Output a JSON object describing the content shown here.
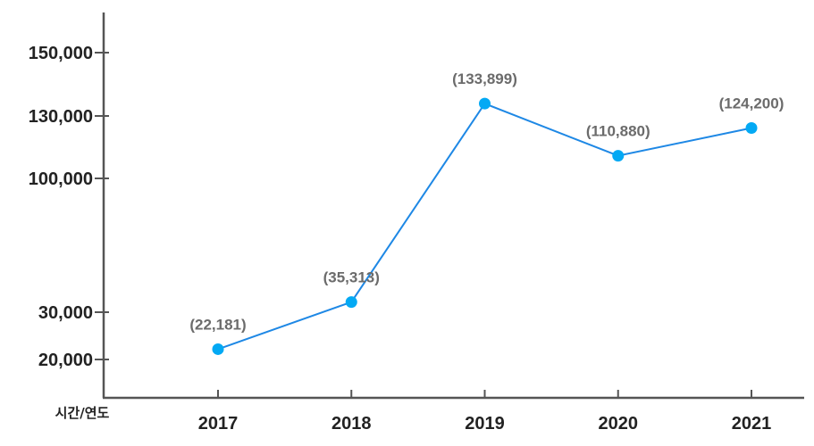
{
  "chart_data": {
    "type": "line",
    "x_axis_label": "시간/연도",
    "categories": [
      "2017",
      "2018",
      "2019",
      "2020",
      "2021"
    ],
    "series": [
      {
        "values": [
          22181,
          35313,
          133899,
          110880,
          124200
        ],
        "data_labels": [
          "(22,181)",
          "(35,313)",
          "(133,899)",
          "(110,880)",
          "(124,200)"
        ]
      }
    ],
    "y_ticks": [
      {
        "value": 20000,
        "label": "20,000"
      },
      {
        "value": 30000,
        "label": "30,000"
      },
      {
        "value": 100000,
        "label": "100,000"
      },
      {
        "value": 130000,
        "label": "130,000"
      },
      {
        "value": 150000,
        "label": "150,000"
      }
    ],
    "y_scale": "non-uniform (tick spacing not proportional to value)",
    "colors": {
      "line": "#1e88e5",
      "marker": "#03a9f4",
      "axis": "#555555",
      "data_label": "#6b6b6b"
    }
  }
}
